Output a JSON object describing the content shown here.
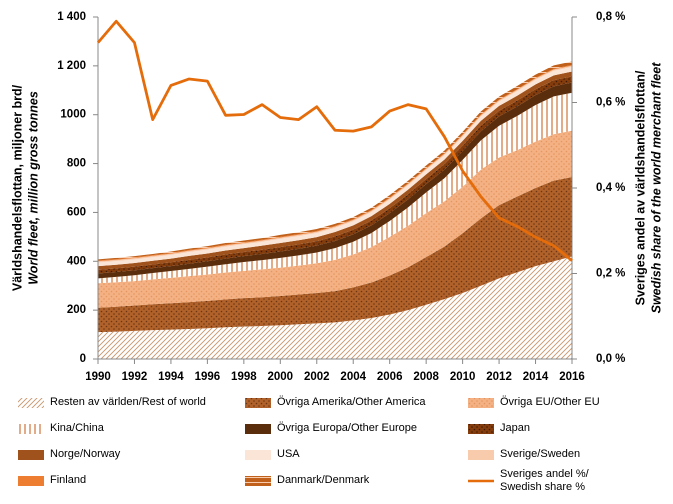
{
  "chart_data": {
    "type": "area",
    "x": [
      1990,
      1991,
      1992,
      1993,
      1994,
      1995,
      1996,
      1997,
      1998,
      1999,
      2000,
      2001,
      2002,
      2003,
      2004,
      2005,
      2006,
      2007,
      2008,
      2009,
      2010,
      2011,
      2012,
      2013,
      2014,
      2015,
      2016
    ],
    "xlim": [
      1990,
      2016
    ],
    "xticks": [
      1990,
      1992,
      1994,
      1996,
      1998,
      2000,
      2002,
      2004,
      2006,
      2008,
      2010,
      2012,
      2014,
      2016
    ],
    "ylim": [
      0,
      1400
    ],
    "yticks": [
      0,
      200,
      400,
      600,
      800,
      1000,
      {
        "value": 1200,
        "label": "1 200"
      },
      {
        "value": 1400,
        "label": "1 400"
      }
    ],
    "y2lim": [
      0,
      0.8
    ],
    "y2ticks": [
      {
        "value": 0,
        "label": "0,0 %"
      },
      {
        "value": 0.2,
        "label": "0,2 %"
      },
      {
        "value": 0.4,
        "label": "0,4 %"
      },
      {
        "value": 0.6,
        "label": "0,6 %"
      },
      {
        "value": 0.8,
        "label": "0,8 %"
      }
    ],
    "ylabel": [
      "Världshandelsflottan, miljoner brd/",
      "World fleet, million gross tonnes"
    ],
    "y2label": [
      "Sveriges andel av världshandelsflottan/",
      "Swedish share of the world merchant fleet"
    ],
    "series": [
      {
        "name": "Resten av världen/Rest of world",
        "color": "#ffffff",
        "hatch": {
          "style": "diagonal",
          "color": "#c9956b"
        },
        "values": [
          110,
          112,
          115,
          118,
          120,
          123,
          126,
          130,
          133,
          135,
          138,
          142,
          146,
          150,
          158,
          168,
          182,
          200,
          222,
          245,
          270,
          300,
          330,
          355,
          380,
          400,
          420
        ]
      },
      {
        "name": "Övriga Amerika/Other America",
        "color": "#b0622a",
        "hatch": {
          "style": "dots",
          "color": "#6e3512"
        },
        "values": [
          100,
          102,
          104,
          106,
          108,
          110,
          112,
          114,
          116,
          118,
          120,
          122,
          124,
          128,
          135,
          145,
          160,
          175,
          195,
          215,
          245,
          275,
          300,
          310,
          320,
          330,
          325
        ]
      },
      {
        "name": "Övriga EU/Other EU",
        "color": "#f4b183",
        "hatch": {
          "style": "dots",
          "color": "#e59560"
        },
        "values": [
          100,
          100,
          100,
          102,
          104,
          106,
          108,
          110,
          112,
          114,
          116,
          118,
          122,
          128,
          135,
          145,
          158,
          170,
          180,
          185,
          190,
          200,
          195,
          190,
          190,
          190,
          190
        ]
      },
      {
        "name": "Kina/China",
        "color": "#ffffff",
        "hatch": {
          "style": "vertical",
          "color": "#c55a11"
        },
        "values": [
          20,
          22,
          24,
          26,
          28,
          30,
          32,
          34,
          36,
          38,
          40,
          42,
          44,
          48,
          52,
          58,
          65,
          75,
          85,
          95,
          110,
          120,
          130,
          140,
          150,
          155,
          155
        ]
      },
      {
        "name": "Övriga Europa/Other Europe",
        "color": "#5a2e0c",
        "values": [
          20,
          20,
          20,
          20,
          20,
          21,
          22,
          23,
          24,
          25,
          26,
          27,
          28,
          29,
          30,
          31,
          32,
          33,
          34,
          35,
          36,
          37,
          38,
          39,
          40,
          41,
          42
        ]
      },
      {
        "name": "Japan",
        "color": "#843c0c",
        "hatch": {
          "style": "dots",
          "color": "#3d1a05"
        },
        "values": [
          15,
          15,
          15,
          15,
          16,
          16,
          16,
          17,
          17,
          17,
          18,
          18,
          18,
          19,
          19,
          20,
          20,
          21,
          21,
          22,
          22,
          23,
          23,
          24,
          24,
          25,
          25
        ]
      },
      {
        "name": "Norge/Norway",
        "color": "#a0521c",
        "values": [
          15,
          15,
          15,
          15,
          15,
          16,
          16,
          16,
          16,
          17,
          17,
          17,
          17,
          18,
          18,
          18,
          18,
          19,
          19,
          19,
          20,
          20,
          20,
          20,
          20,
          20,
          20
        ]
      },
      {
        "name": "USA",
        "color": "#fbe5d6",
        "values": [
          15,
          15,
          15,
          15,
          15,
          16,
          16,
          16,
          16,
          16,
          17,
          17,
          17,
          17,
          17,
          17,
          18,
          18,
          18,
          18,
          18,
          18,
          18,
          19,
          19,
          19,
          19
        ]
      },
      {
        "name": "Sverige/Sweden",
        "color": "#f8cbad",
        "values": [
          5,
          5,
          5,
          5,
          5,
          5,
          5,
          5,
          5,
          5,
          5,
          5,
          5,
          5,
          5,
          5,
          5,
          5,
          5,
          5,
          5,
          5,
          5,
          5,
          5,
          5,
          5
        ]
      },
      {
        "name": "Finland",
        "color": "#ed7d31",
        "values": [
          3,
          3,
          3,
          3,
          3,
          3,
          3,
          3,
          3,
          3,
          3,
          3,
          3,
          3,
          3,
          3,
          3,
          3,
          3,
          3,
          3,
          3,
          3,
          3,
          3,
          3,
          3
        ]
      },
      {
        "name": "Danmark/Denmark",
        "color": "#c0601a",
        "hatch": {
          "style": "horizontal",
          "color": "#f8cbad"
        },
        "values": [
          5,
          5,
          5,
          5,
          6,
          6,
          6,
          7,
          7,
          7,
          8,
          8,
          8,
          8,
          9,
          9,
          10,
          10,
          10,
          11,
          11,
          12,
          12,
          13,
          13,
          14,
          14
        ]
      },
      {
        "name": "Sveriges andel %/ Swedish share %",
        "type": "line",
        "axis": "y2",
        "color": "#e46c0a",
        "values": [
          0.74,
          0.79,
          0.74,
          0.56,
          0.64,
          0.655,
          0.65,
          0.57,
          0.572,
          0.595,
          0.565,
          0.56,
          0.59,
          0.535,
          0.533,
          0.543,
          0.58,
          0.595,
          0.585,
          0.52,
          0.44,
          0.38,
          0.33,
          0.31,
          0.285,
          0.265,
          0.23
        ]
      }
    ]
  }
}
